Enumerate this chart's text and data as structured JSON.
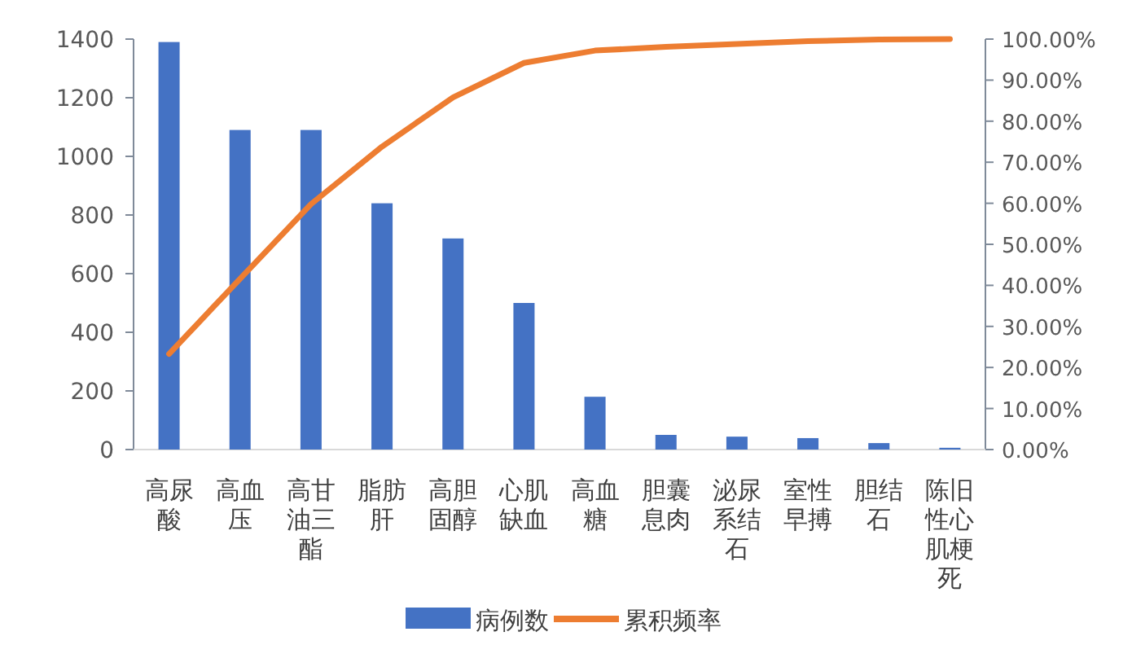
{
  "chart_data": {
    "type": "bar",
    "categories": [
      "高尿酸",
      "高血压",
      "高甘油三酯",
      "脂肪肝",
      "高胆固醇",
      "心肌缺血",
      "高血糖",
      "胆囊息肉",
      "泌尿系结石",
      "室性早搏",
      "胆结石",
      "陈旧性心肌梗死"
    ],
    "series": [
      {
        "name": "病例数",
        "color": "#4472c4",
        "values": [
          1390,
          1090,
          1090,
          840,
          720,
          500,
          180,
          50,
          44,
          39,
          22,
          6
        ]
      },
      {
        "name": "累积频率",
        "type": "line",
        "axis": "y2",
        "color": "#ed7d31",
        "values": [
          23.3,
          41.6,
          59.8,
          73.8,
          85.8,
          94.2,
          97.2,
          98.1,
          98.8,
          99.5,
          99.9,
          100
        ]
      }
    ],
    "ylim": [
      0,
      1400
    ],
    "yticks": [
      0,
      200,
      400,
      600,
      800,
      1000,
      1200,
      1400
    ],
    "y2lim": [
      0,
      100
    ],
    "y2ticks": [
      {
        "value": 0,
        "label": "0.00%"
      },
      {
        "value": 10,
        "label": "10.00%"
      },
      {
        "value": 20,
        "label": "20.00%"
      },
      {
        "value": 30,
        "label": "30.00%"
      },
      {
        "value": 40,
        "label": "40.00%"
      },
      {
        "value": 50,
        "label": "50.00%"
      },
      {
        "value": 60,
        "label": "60.00%"
      },
      {
        "value": 70,
        "label": "70.00%"
      },
      {
        "value": 80,
        "label": "80.00%"
      },
      {
        "value": 90,
        "label": "90.00%"
      },
      {
        "value": 100,
        "label": "100.00%"
      }
    ],
    "legend": "bottom",
    "grid": false
  }
}
